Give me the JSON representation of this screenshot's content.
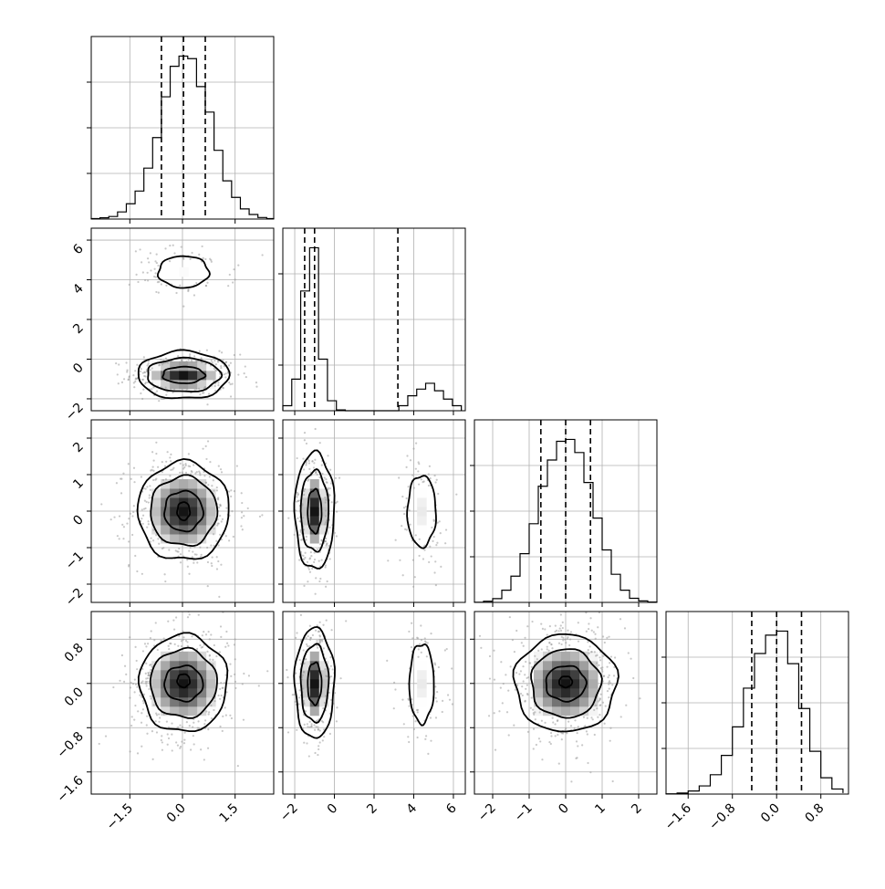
{
  "chart_data": {
    "type": "corner",
    "title": "",
    "grid": true,
    "parameters": [
      {
        "label": "",
        "range": [
          -2.6,
          2.6
        ],
        "ticks": [
          -1.5,
          0.0,
          1.5
        ],
        "tick_labels": [
          "−1.5",
          "0.0",
          "1.5"
        ]
      },
      {
        "label": "",
        "range": [
          -2.6,
          6.6
        ],
        "ticks": [
          -2,
          0,
          2,
          4,
          6
        ],
        "tick_labels": [
          "−2",
          "0",
          "2",
          "4",
          "6"
        ]
      },
      {
        "label": "",
        "range": [
          -2.5,
          2.5
        ],
        "ticks": [
          -2,
          -1,
          0,
          1,
          2
        ],
        "tick_labels": [
          "−2",
          "−1",
          "0",
          "1",
          "2"
        ]
      },
      {
        "label": "",
        "range": [
          -2.0,
          1.3
        ],
        "ticks": [
          -1.6,
          -0.8,
          0.0,
          0.8
        ],
        "tick_labels": [
          "−1.6",
          "−0.8",
          "0.0",
          "0.8"
        ]
      }
    ],
    "diagonal_histograms": [
      {
        "param": 0,
        "quantiles": [
          -0.6,
          0.03,
          0.65
        ],
        "bins": [
          -2.6,
          -2.35,
          -2.1,
          -1.85,
          -1.6,
          -1.35,
          -1.1,
          -0.85,
          -0.6,
          -0.35,
          -0.1,
          0.15,
          0.4,
          0.65,
          0.9,
          1.15,
          1.4,
          1.65,
          1.9,
          2.15,
          2.4,
          2.6
        ],
        "counts": [
          2,
          5,
          10,
          28,
          60,
          110,
          200,
          320,
          480,
          600,
          640,
          630,
          520,
          420,
          270,
          150,
          85,
          40,
          18,
          6,
          2
        ]
      },
      {
        "param": 1,
        "quantiles": [
          -1.5,
          -1.0,
          3.2
        ],
        "bins": [
          -2.6,
          -2.15,
          -1.7,
          -1.25,
          -0.8,
          -0.35,
          0.1,
          0.55,
          1.0,
          1.45,
          1.9,
          2.35,
          2.8,
          3.25,
          3.7,
          4.15,
          4.6,
          5.05,
          5.5,
          5.95,
          6.4
        ],
        "counts": [
          30,
          190,
          720,
          980,
          310,
          60,
          5,
          0,
          0,
          0,
          0,
          0,
          0,
          30,
          90,
          130,
          165,
          120,
          70,
          30
        ]
      },
      {
        "param": 2,
        "quantiles": [
          -0.68,
          0.0,
          0.68
        ],
        "bins": [
          -2.5,
          -2.25,
          -2.0,
          -1.75,
          -1.5,
          -1.25,
          -1.0,
          -0.75,
          -0.5,
          -0.25,
          0.0,
          0.25,
          0.5,
          0.75,
          1.0,
          1.25,
          1.5,
          1.75,
          2.0,
          2.25,
          2.5
        ],
        "counts": [
          1,
          6,
          20,
          65,
          140,
          260,
          420,
          620,
          760,
          860,
          870,
          800,
          640,
          450,
          280,
          150,
          65,
          22,
          8,
          2
        ]
      },
      {
        "param": 3,
        "quantiles": [
          -0.45,
          0.0,
          0.45
        ],
        "bins": [
          -2.0,
          -1.8,
          -1.6,
          -1.4,
          -1.2,
          -1.0,
          -0.8,
          -0.6,
          -0.4,
          -0.2,
          0.0,
          0.2,
          0.4,
          0.6,
          0.8,
          1.0,
          1.2
        ],
        "counts": [
          1,
          5,
          15,
          40,
          95,
          190,
          330,
          520,
          690,
          780,
          800,
          640,
          420,
          210,
          80,
          25,
          5
        ]
      }
    ],
    "scatter_panels": [
      {
        "x": 0,
        "y": 1,
        "blobs": [
          {
            "cx": 0.03,
            "cy": -0.8,
            "sx": 0.65,
            "sy": 0.45,
            "n": 1000
          },
          {
            "cx": 0.03,
            "cy": 4.4,
            "sx": 0.65,
            "sy": 0.55,
            "n": 240
          }
        ],
        "contour_levels": [
          {
            "cx": 0.03,
            "cy": -0.8,
            "rx": 1.3,
            "ry": 1.2
          },
          {
            "cx": 0.03,
            "cy": -0.8,
            "rx": 1.05,
            "ry": 0.85
          },
          {
            "cx": 0.03,
            "cy": -0.8,
            "rx": 0.6,
            "ry": 0.42
          },
          {
            "cx": 0.03,
            "cy": 4.4,
            "rx": 0.72,
            "ry": 0.8
          }
        ]
      },
      {
        "x": 0,
        "y": 2,
        "blobs": [
          {
            "cx": 0.03,
            "cy": 0.0,
            "sx": 0.65,
            "sy": 0.68,
            "n": 1200
          }
        ],
        "contour_levels": [
          {
            "cx": 0.03,
            "cy": 0.0,
            "rx": 1.3,
            "ry": 1.35
          },
          {
            "cx": 0.03,
            "cy": 0.0,
            "rx": 0.95,
            "ry": 0.95
          },
          {
            "cx": 0.03,
            "cy": 0.0,
            "rx": 0.55,
            "ry": 0.55
          },
          {
            "cx": 0.03,
            "cy": 0.0,
            "rx": 0.18,
            "ry": 0.25
          }
        ]
      },
      {
        "x": 0,
        "y": 3,
        "blobs": [
          {
            "cx": 0.03,
            "cy": 0.0,
            "sx": 0.65,
            "sy": 0.45,
            "n": 1200
          }
        ],
        "contour_levels": [
          {
            "cx": 0.03,
            "cy": 0.0,
            "rx": 1.25,
            "ry": 0.88
          },
          {
            "cx": 0.03,
            "cy": 0.0,
            "rx": 0.95,
            "ry": 0.62
          },
          {
            "cx": 0.03,
            "cy": 0.0,
            "rx": 0.55,
            "ry": 0.32
          },
          {
            "cx": 0.03,
            "cy": 0.05,
            "rx": 0.18,
            "ry": 0.12
          }
        ]
      },
      {
        "x": 1,
        "y": 2,
        "blobs": [
          {
            "cx": -1.0,
            "cy": 0.0,
            "sx": 0.38,
            "sy": 0.68,
            "n": 900
          },
          {
            "cx": 4.4,
            "cy": 0.0,
            "sx": 0.55,
            "sy": 0.68,
            "n": 300
          }
        ],
        "contour_levels": [
          {
            "cx": -1.0,
            "cy": 0.0,
            "rx": 1.0,
            "ry": 1.6
          },
          {
            "cx": -1.0,
            "cy": 0.0,
            "rx": 0.7,
            "ry": 1.1
          },
          {
            "cx": -1.0,
            "cy": 0.0,
            "rx": 0.35,
            "ry": 0.6
          },
          {
            "cx": 4.4,
            "cy": 0.0,
            "rx": 0.72,
            "ry": 0.98
          }
        ]
      },
      {
        "x": 1,
        "y": 3,
        "blobs": [
          {
            "cx": -1.0,
            "cy": 0.0,
            "sx": 0.38,
            "sy": 0.45,
            "n": 900
          },
          {
            "cx": 4.4,
            "cy": 0.0,
            "sx": 0.55,
            "sy": 0.45,
            "n": 300
          }
        ],
        "contour_levels": [
          {
            "cx": -1.0,
            "cy": 0.0,
            "rx": 1.0,
            "ry": 1.0
          },
          {
            "cx": -1.0,
            "cy": 0.0,
            "rx": 0.7,
            "ry": 0.7
          },
          {
            "cx": -1.0,
            "cy": 0.0,
            "rx": 0.35,
            "ry": 0.38
          },
          {
            "cx": 4.4,
            "cy": 0.0,
            "rx": 0.62,
            "ry": 0.72
          }
        ]
      },
      {
        "x": 2,
        "y": 3,
        "blobs": [
          {
            "cx": 0.0,
            "cy": 0.0,
            "sx": 0.68,
            "sy": 0.45,
            "n": 1200
          }
        ],
        "contour_levels": [
          {
            "cx": 0.0,
            "cy": 0.0,
            "rx": 1.4,
            "ry": 0.88
          },
          {
            "cx": 0.0,
            "cy": 0.0,
            "rx": 0.95,
            "ry": 0.62
          },
          {
            "cx": 0.0,
            "cy": 0.0,
            "rx": 0.55,
            "ry": 0.32
          },
          {
            "cx": 0.0,
            "cy": 0.03,
            "rx": 0.18,
            "ry": 0.1
          }
        ]
      }
    ]
  }
}
